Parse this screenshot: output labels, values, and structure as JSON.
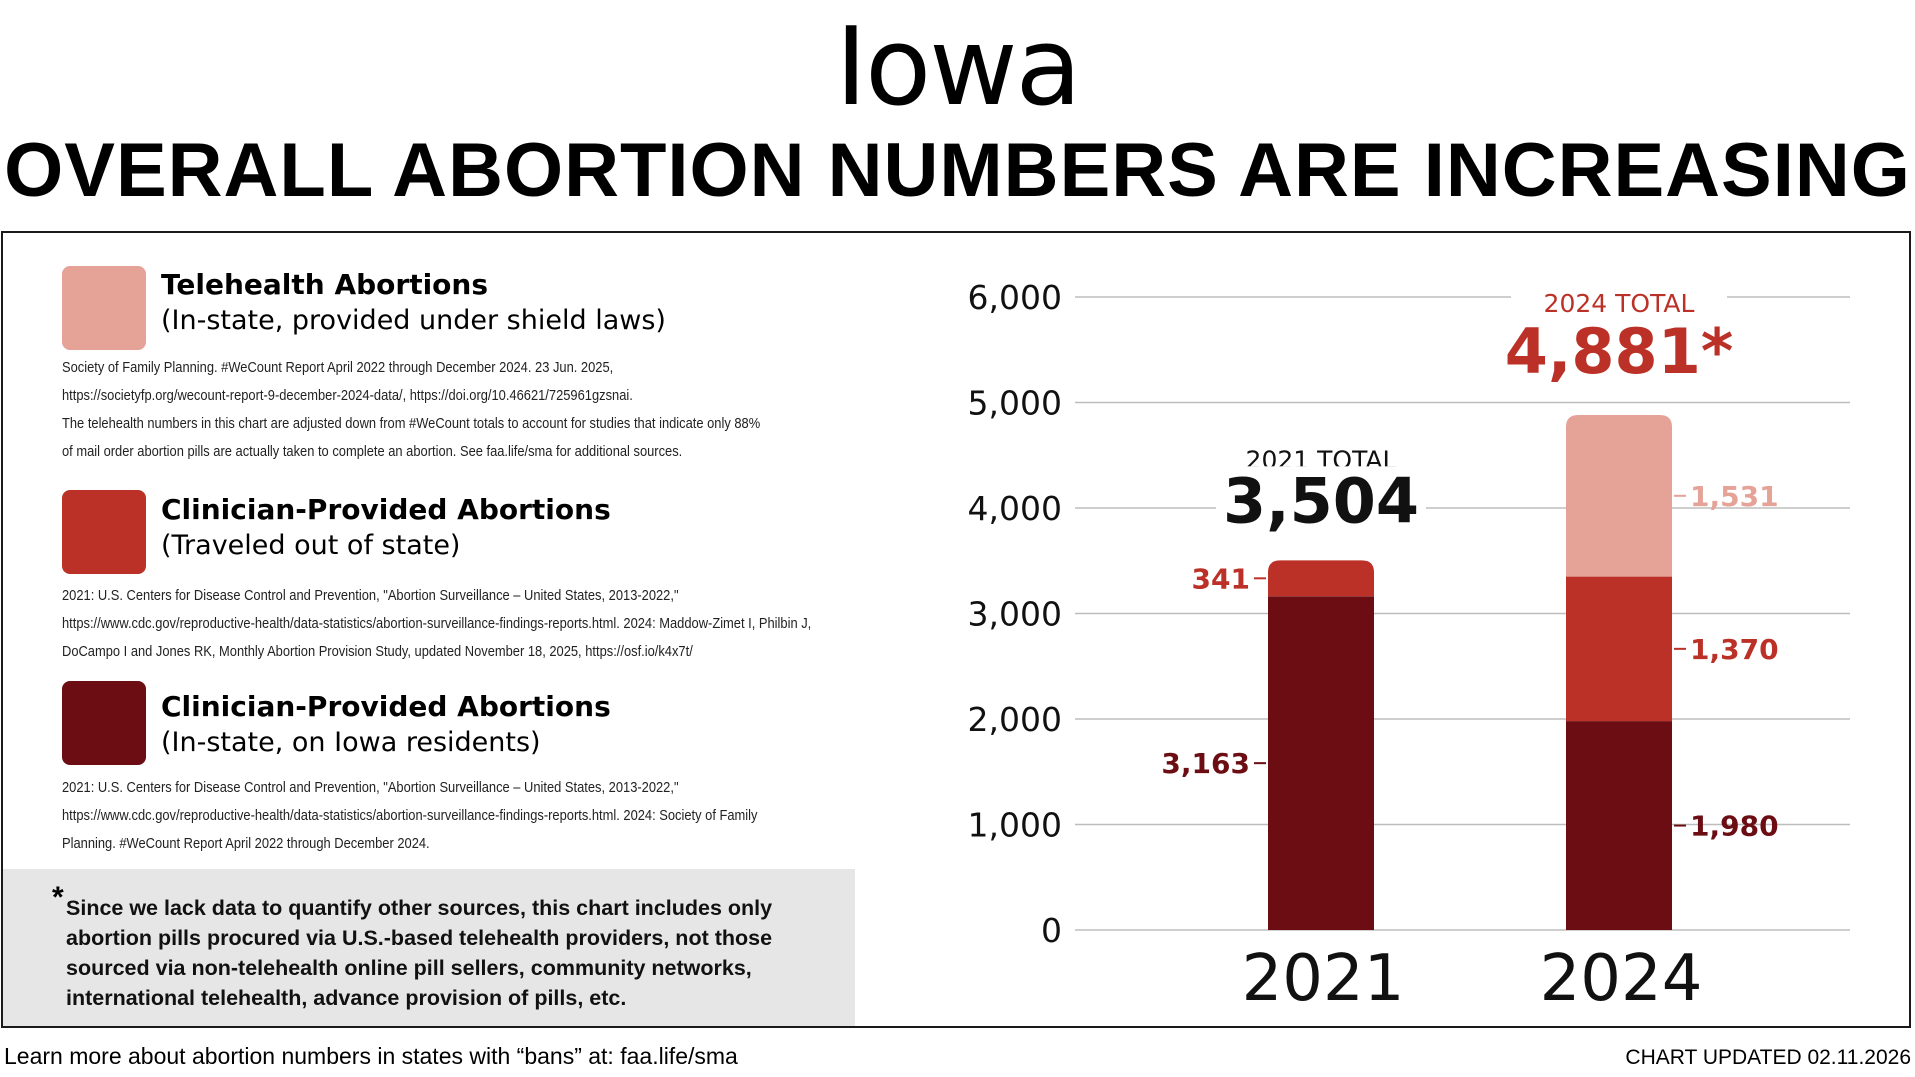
{
  "header": {
    "title": "Iowa",
    "subtitle": "OVERALL ABORTION NUMBERS ARE INCREASING"
  },
  "legend": [
    {
      "title": "Telehealth Abortions",
      "subtitle": "(In-state, provided under shield laws)",
      "color": "#e5a297",
      "source_lines": [
        "Society of Family Planning. #WeCount Report April 2022 through December 2024. 23 Jun. 2025,",
        "https://societyfp.org/wecount-report-9-december-2024-data/, https://doi.org/10.46621/725961gzsnai.",
        "The telehealth numbers in this chart are adjusted down from #WeCount totals to account for studies that indicate only 88%",
        "of mail order abortion pills are actually taken to complete an abortion. See faa.life/sma for additional sources."
      ]
    },
    {
      "title": "Clinician-Provided Abortions",
      "subtitle": "(Traveled out of state)",
      "color": "#bc3127",
      "source_lines": [
        "2021: U.S. Centers for Disease Control and Prevention, \"Abortion Surveillance –  United States, 2013-2022,\"",
        "https://www.cdc.gov/reproductive-health/data-statistics/abortion-surveillance-findings-reports.html.  2024: Maddow-Zimet I, Philbin J,",
        "DoCampo I and Jones RK, Monthly Abortion Provision Study,  updated November 18, 2025, https://osf.io/k4x7t/"
      ]
    },
    {
      "title": "Clinician-Provided Abortions",
      "subtitle": "(In-state, on Iowa residents)",
      "color": "#6b0d12",
      "source_lines": [
        "2021: U.S. Centers for Disease Control and Prevention, \"Abortion Surveillance –  United States, 2013-2022,\"",
        "https://www.cdc.gov/reproductive-health/data-statistics/abortion-surveillance-findings-reports.html. 2024: Society of Family",
        "Planning. #WeCount Report April 2022 through December 2024."
      ]
    }
  ],
  "note": {
    "star": "*",
    "text": "Since we lack data to quantify other sources, this chart includes only abortion pills procured via U.S.-based telehealth providers, not those sourced via non-telehealth online pill sellers, community networks, international telehealth, advance provision of pills, etc."
  },
  "footer": {
    "left": "Learn more about abortion numbers in states with “bans” at: faa.life/sma",
    "right": "CHART UPDATED 02.11.2026"
  },
  "chart_data": {
    "type": "bar",
    "stacked": true,
    "categories": [
      "2021",
      "2024"
    ],
    "series": [
      {
        "name": "Clinician-Provided Abortions (In-state, on Iowa residents)",
        "color": "#6b0d12",
        "values": [
          3163,
          1980
        ],
        "labels": [
          "3,163",
          "1,980"
        ]
      },
      {
        "name": "Clinician-Provided Abortions (Traveled out of state)",
        "color": "#bc3127",
        "values": [
          341,
          1370
        ],
        "labels": [
          "341",
          "1,370"
        ]
      },
      {
        "name": "Telehealth Abortions (In-state, provided under shield laws)",
        "color": "#e5a297",
        "values": [
          0,
          1531
        ],
        "labels": [
          "",
          "1,531"
        ]
      }
    ],
    "totals": [
      {
        "caption": "2021 TOTAL",
        "value": "3,504",
        "color": "#111111"
      },
      {
        "caption": "2024 TOTAL",
        "value": "4,881*",
        "color": "#bc3127"
      }
    ],
    "ylim": [
      0,
      6000
    ],
    "yticks": [
      0,
      1000,
      2000,
      3000,
      4000,
      5000,
      6000
    ],
    "ytick_labels": [
      "0",
      "1,000",
      "2,000",
      "3,000",
      "4,000",
      "5,000",
      "6,000"
    ],
    "grid": true,
    "title": "OVERALL ABORTION NUMBERS ARE INCREASING",
    "xlabel": "",
    "ylabel": ""
  }
}
